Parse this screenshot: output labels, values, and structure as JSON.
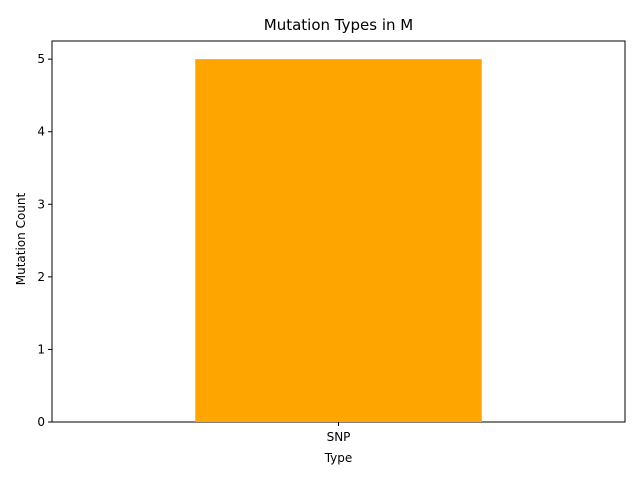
{
  "chart_data": {
    "type": "bar",
    "title": "Mutation Types in M",
    "xlabel": "Type",
    "ylabel": "Mutation Count",
    "categories": [
      "SNP"
    ],
    "values": [
      5
    ],
    "ylim": [
      0,
      5.25
    ],
    "yticks": [
      "0",
      "1",
      "2",
      "3",
      "4",
      "5"
    ],
    "bar_color": "#FFA500",
    "grid": false,
    "legend": "none"
  }
}
